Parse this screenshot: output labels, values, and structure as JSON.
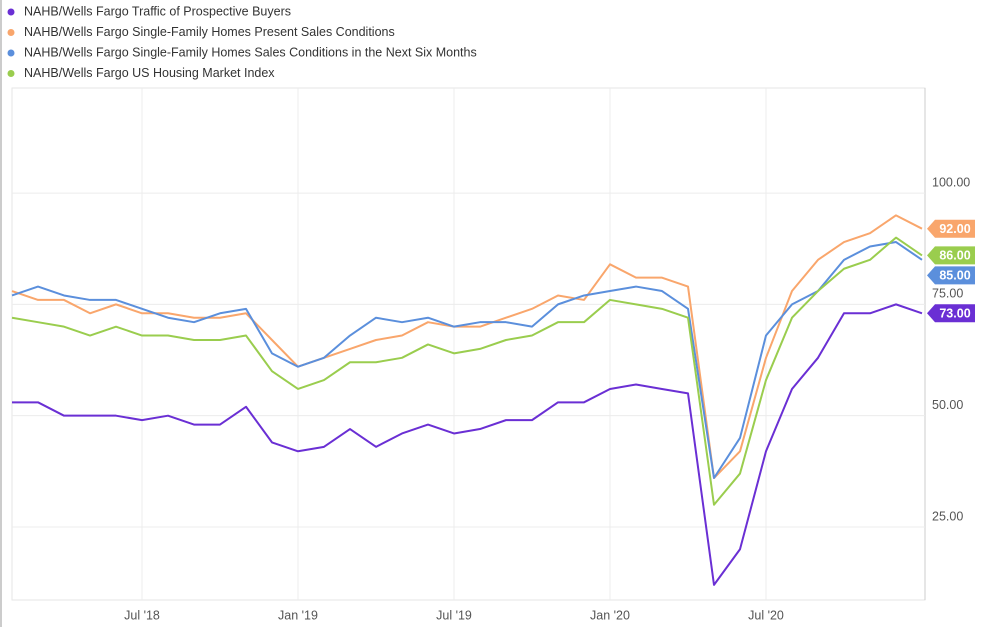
{
  "chart_data": {
    "type": "line",
    "x": [
      "2018-01",
      "2018-02",
      "2018-03",
      "2018-04",
      "2018-05",
      "2018-06",
      "2018-07",
      "2018-08",
      "2018-09",
      "2018-10",
      "2018-11",
      "2018-12",
      "2019-01",
      "2019-02",
      "2019-03",
      "2019-04",
      "2019-05",
      "2019-06",
      "2019-07",
      "2019-08",
      "2019-09",
      "2019-10",
      "2019-11",
      "2019-12",
      "2020-01",
      "2020-02",
      "2020-03",
      "2020-04",
      "2020-05",
      "2020-06",
      "2020-07",
      "2020-08",
      "2020-09",
      "2020-10",
      "2020-11",
      "2020-12"
    ],
    "series": [
      {
        "name": "NAHB/Wells Fargo Traffic of Prospective Buyers",
        "color": "#6a2fd4",
        "values": [
          53,
          53,
          50,
          50,
          50,
          49,
          50,
          48,
          48,
          52,
          44,
          42,
          43,
          47,
          43,
          46,
          48,
          46,
          47,
          49,
          49,
          53,
          53,
          56,
          57,
          56,
          55,
          12,
          20,
          42,
          56,
          63,
          73,
          73,
          75,
          73
        ],
        "value_labels": [
          "73.00"
        ]
      },
      {
        "name": "NAHB/Wells Fargo Single-Family Homes Present Sales Conditions",
        "color": "#f9a66c",
        "values": [
          78,
          76,
          76,
          73,
          75,
          73,
          73,
          72,
          72,
          73,
          67,
          61,
          63,
          65,
          67,
          68,
          71,
          70,
          70,
          72,
          74,
          77,
          76,
          84,
          81,
          81,
          79,
          36,
          42,
          63,
          78,
          85,
          89,
          91,
          95,
          92
        ],
        "value_labels": [
          "92.00"
        ]
      },
      {
        "name": "NAHB/Wells Fargo Single-Family Homes Sales Conditions in the Next Six Months",
        "color": "#5b8fdc",
        "values": [
          77,
          79,
          77,
          76,
          76,
          74,
          72,
          71,
          73,
          74,
          64,
          61,
          63,
          68,
          72,
          71,
          72,
          70,
          71,
          71,
          70,
          75,
          77,
          78,
          79,
          78,
          74,
          36,
          45,
          68,
          75,
          78,
          85,
          88,
          89,
          85
        ],
        "value_labels": [
          "85.00"
        ]
      },
      {
        "name": "NAHB/Wells Fargo US Housing Market Index",
        "color": "#9acd4e",
        "values": [
          72,
          71,
          70,
          68,
          70,
          68,
          68,
          67,
          67,
          68,
          60,
          56,
          58,
          62,
          62,
          63,
          66,
          64,
          65,
          67,
          68,
          71,
          71,
          76,
          75,
          74,
          72,
          30,
          37,
          58,
          72,
          78,
          83,
          85,
          90,
          86
        ],
        "value_labels": [
          "86.00"
        ]
      }
    ],
    "ylim": [
      8.6,
      123.6
    ],
    "yticks": [
      {
        "value": 25,
        "label": "25.00"
      },
      {
        "value": 50,
        "label": "50.00"
      },
      {
        "value": 75,
        "label": "75.00"
      },
      {
        "value": 100,
        "label": "100.00"
      }
    ],
    "xticks": [
      {
        "value": "2018-07",
        "label": "Jul '18"
      },
      {
        "value": "2019-01",
        "label": "Jan '19"
      },
      {
        "value": "2019-07",
        "label": "Jul '19"
      },
      {
        "value": "2020-01",
        "label": "Jan '20"
      },
      {
        "value": "2020-07",
        "label": "Jul '20"
      }
    ],
    "grid": true
  }
}
